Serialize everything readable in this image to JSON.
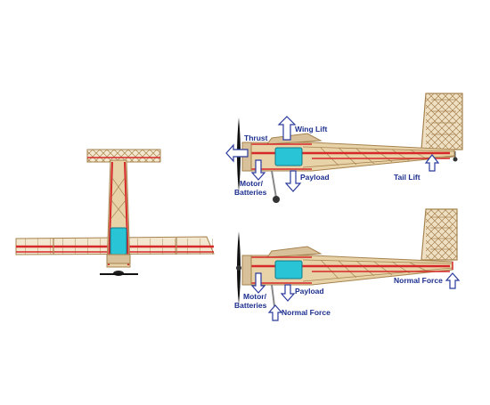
{
  "colors": {
    "wood": "#a6834f",
    "wood_fill": "#e8d2a8",
    "spar": "#d62828",
    "motor": "#29c4d6",
    "arrow_fill": "#ffffff",
    "arrow_stroke": "#2a3a9c",
    "label": "#1d2f8f"
  },
  "side_view_top": {
    "labels": {
      "thrust": "Thrust",
      "wing_lift": "Wing Lift",
      "motor_batteries_1": "Motor/",
      "motor_batteries_2": "Batteries",
      "payload": "Payload",
      "tail_lift": "Tail Lift"
    }
  },
  "side_view_bottom": {
    "labels": {
      "motor_batteries_1": "Motor/",
      "motor_batteries_2": "Batteries",
      "payload": "Payload",
      "normal_force_front": "Normal Force",
      "normal_force_tail": "Normal Force"
    }
  },
  "icons": {
    "up_arrow": "up-arrow-icon",
    "down_arrow": "down-arrow-icon",
    "left_arrow": "left-arrow-icon",
    "propeller": "propeller-icon"
  }
}
